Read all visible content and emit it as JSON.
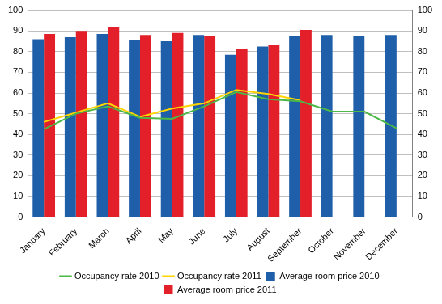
{
  "chart_data": {
    "type": "bar",
    "categories": [
      "January",
      "February",
      "March",
      "April",
      "May",
      "June",
      "July",
      "August",
      "September",
      "October",
      "November",
      "December"
    ],
    "series": [
      {
        "name": "Average room price 2010",
        "type": "bar",
        "color": "#1f5ea8",
        "values": [
          86,
          87,
          88.5,
          85.5,
          85,
          88,
          78.5,
          82.5,
          87.5,
          88,
          87.5,
          88
        ]
      },
      {
        "name": "Average room price 2011",
        "type": "bar",
        "color": "#e3202a",
        "values": [
          88.5,
          90,
          92,
          88,
          89,
          87.5,
          81.5,
          83,
          90.5,
          null,
          null,
          null
        ]
      },
      {
        "name": "Occupancy rate 2010",
        "type": "line",
        "color": "#4cb848",
        "axis": "y2",
        "values": [
          42.5,
          50,
          53.5,
          48,
          47.5,
          53.5,
          60.5,
          57,
          56,
          51,
          51,
          43
        ]
      },
      {
        "name": "Occupancy rate 2011",
        "type": "line",
        "color": "#ffd400",
        "axis": "y2",
        "values": [
          46,
          50.5,
          55,
          48.5,
          52.5,
          55,
          61.5,
          59.5,
          56.5,
          null,
          null,
          null
        ]
      }
    ],
    "ylim": [
      0,
      100
    ],
    "yticks": [
      0,
      10,
      20,
      30,
      40,
      50,
      60,
      70,
      80,
      90,
      100
    ],
    "y2lim": [
      0,
      100
    ],
    "y2ticks": [
      0,
      10,
      20,
      30,
      40,
      50,
      60,
      70,
      80,
      90,
      100
    ],
    "grid": true,
    "legend": "bottom"
  }
}
